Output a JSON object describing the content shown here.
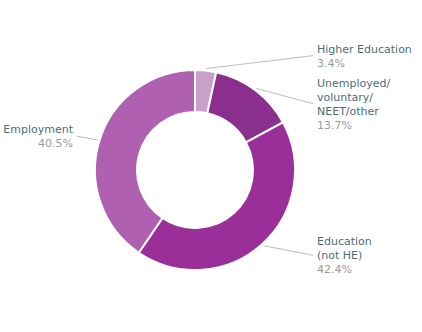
{
  "chart_data": {
    "type": "donut",
    "categories": [
      "Higher Education",
      "Unemployed/\nvoluntary/\nNEET/other",
      "Education\n(not HE)",
      "Employment"
    ],
    "values": [
      3.4,
      13.7,
      42.4,
      40.5
    ],
    "value_labels": [
      "3.4%",
      "13.7%",
      "42.4%",
      "40.5%"
    ],
    "colors": [
      "#c9a0cc",
      "#8b2f8e",
      "#9b2f9a",
      "#b060b0"
    ],
    "data_labels": true
  }
}
